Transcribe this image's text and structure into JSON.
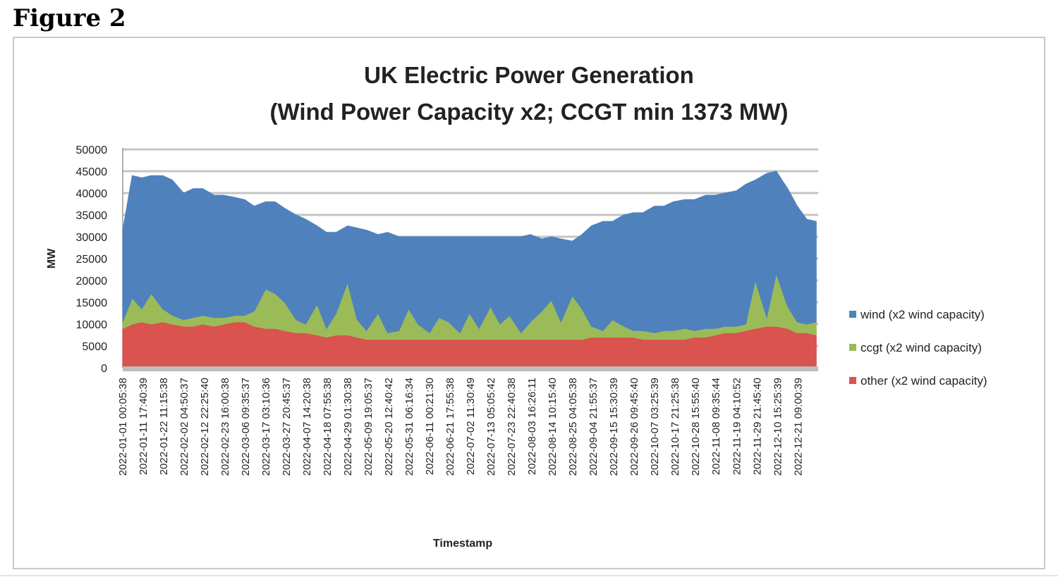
{
  "figure_label": "Figure 2",
  "chart_data": {
    "type": "area",
    "stacked": true,
    "title": [
      "UK Electric Power Generation",
      "(Wind Power Capacity x2; CCGT min 1373 MW)"
    ],
    "ylabel": "MW",
    "xlabel": "Timestamp",
    "ylim": [
      0,
      50000
    ],
    "yticks": [
      0,
      5000,
      10000,
      15000,
      20000,
      25000,
      30000,
      35000,
      40000,
      45000,
      50000
    ],
    "grid": true,
    "legend_position": "right",
    "x_tick_labels": [
      "2022-01-01 00:05:38",
      "2022-01-11 17:40:39",
      "2022-01-22 11:15:38",
      "2022-02-02 04:50:37",
      "2022-02-12 22:25:40",
      "2022-02-23 16:00:38",
      "2022-03-06 09:35:37",
      "2022-03-17 03:10:36",
      "2022-03-27 20:45:37",
      "2022-04-07 14:20:38",
      "2022-04-18 07:55:38",
      "2022-04-29 01:30:38",
      "2022-05-09 19:05:37",
      "2022-05-20 12:40:42",
      "2022-05-31 06:16:34",
      "2022-06-11 00:21:30",
      "2022-06-21 17:55:38",
      "2022-07-02 11:30:49",
      "2022-07-13 05:05:42",
      "2022-07-23 22:40:38",
      "2022-08-03 16:26:11",
      "2022-08-14 10:15:40",
      "2022-08-25 04:05:38",
      "2022-09-04 21:55:37",
      "2022-09-15 15:30:39",
      "2022-09-26 09:45:40",
      "2022-10-07 03:25:39",
      "2022-10-17 21:25:38",
      "2022-10-28 15:55:40",
      "2022-11-08 09:35:44",
      "2022-11-19 04:10:52",
      "2022-11-29 21:45:40",
      "2022-12-10 15:25:39",
      "2022-12-21 09:00:39"
    ],
    "x_tick_values": [
      "2022-01-01 00:05:38",
      "2022-01-11 17:40:39",
      "2022-01-22 11:15:38",
      "2022-02-02 04:50:37",
      "2022-02-12 22:25:40",
      "2022-02-23 16:00:38",
      "2022-03-06 09:35:37",
      "2022-03-17 03:10:36",
      "2022-03-27 20:45:37",
      "2022-04-07 14:20:38",
      "2022-04-18 07:55:38",
      "2022-04-29 01:30:38",
      "2022-05-09 19:05:37",
      "2022-05-20 12:40:42",
      "2022-05-31 06:16:34",
      "2022-06-11 00:21:30",
      "2022-06-21 17:55:38",
      "2022-07-02 11:30:49",
      "2022-07-13 05:05:42",
      "2022-07-23 22:40:38",
      "2022-08-03 16:26:11",
      "2022-08-14 10:15:40",
      "2022-08-25 04:05:38",
      "2022-09-04 21:55:37",
      "2022-09-15 15:30:39",
      "2022-09-26 09:45:40",
      "2022-10-07 03:25:39",
      "2022-10-17 21:25:38",
      "2022-10-28 15:55:40",
      "2022-11-08 09:35:44",
      "2022-11-19 04:10:52",
      "2022-11-29 21:45:40",
      "2022-12-10 15:25:39",
      "2022-12-21 09:00:39"
    ],
    "x": [
      "2022-01-01",
      "2022-01-06",
      "2022-01-11",
      "2022-01-16",
      "2022-01-22",
      "2022-01-27",
      "2022-02-02",
      "2022-02-07",
      "2022-02-12",
      "2022-02-18",
      "2022-02-23",
      "2022-03-01",
      "2022-03-06",
      "2022-03-11",
      "2022-03-17",
      "2022-03-22",
      "2022-03-27",
      "2022-04-02",
      "2022-04-07",
      "2022-04-13",
      "2022-04-18",
      "2022-04-23",
      "2022-04-29",
      "2022-05-04",
      "2022-05-09",
      "2022-05-15",
      "2022-05-20",
      "2022-05-26",
      "2022-05-31",
      "2022-06-05",
      "2022-06-11",
      "2022-06-16",
      "2022-06-21",
      "2022-06-27",
      "2022-07-02",
      "2022-07-07",
      "2022-07-13",
      "2022-07-18",
      "2022-07-23",
      "2022-07-29",
      "2022-08-03",
      "2022-08-09",
      "2022-08-14",
      "2022-08-19",
      "2022-08-25",
      "2022-08-30",
      "2022-09-04",
      "2022-09-10",
      "2022-09-15",
      "2022-09-21",
      "2022-09-26",
      "2022-10-01",
      "2022-10-07",
      "2022-10-12",
      "2022-10-17",
      "2022-10-23",
      "2022-10-28",
      "2022-11-03",
      "2022-11-08",
      "2022-11-13",
      "2022-11-19",
      "2022-11-24",
      "2022-11-29",
      "2022-12-05",
      "2022-12-10",
      "2022-12-16",
      "2022-12-21",
      "2022-12-26",
      "2022-12-31"
    ],
    "series": [
      {
        "name": "other (x2 wind capacity)",
        "color": "#d9534f",
        "values": [
          9000,
          10000,
          10500,
          10000,
          10500,
          10000,
          9500,
          9500,
          10000,
          9500,
          10000,
          10500,
          10500,
          9500,
          9000,
          9000,
          8500,
          8000,
          8000,
          7500,
          7000,
          7500,
          7500,
          7000,
          6500,
          6500,
          6500,
          6500,
          6500,
          6500,
          6500,
          6500,
          6500,
          6500,
          6500,
          6500,
          6500,
          6500,
          6500,
          6500,
          6500,
          6500,
          6500,
          6500,
          6500,
          6500,
          7000,
          7000,
          7000,
          7000,
          7000,
          6500,
          6500,
          6500,
          6500,
          6500,
          7000,
          7000,
          7500,
          8000,
          8000,
          8500,
          9000,
          9500,
          9500,
          9000,
          8000,
          8000,
          7500
        ]
      },
      {
        "name": "ccgt (x2 wind capacity)",
        "color": "#9bbb59",
        "values": [
          1500,
          6000,
          3000,
          7000,
          3000,
          2000,
          1500,
          2000,
          2000,
          2000,
          1500,
          1500,
          1500,
          3500,
          9000,
          8000,
          6500,
          3000,
          2000,
          7000,
          2000,
          5000,
          12000,
          4000,
          2000,
          6000,
          1500,
          2000,
          7000,
          3500,
          1500,
          5000,
          4000,
          1500,
          6000,
          2500,
          7500,
          3500,
          5500,
          1500,
          4000,
          6500,
          9000,
          4000,
          10000,
          7000,
          2500,
          1500,
          4000,
          2500,
          1500,
          2000,
          1500,
          2000,
          2000,
          2500,
          1500,
          2000,
          1500,
          1500,
          1500,
          1500,
          11000,
          2000,
          12000,
          5000,
          2500,
          2000,
          3000
        ]
      },
      {
        "name": "wind (x2 wind capacity)",
        "color": "#4f81bd",
        "values": [
          21000,
          28000,
          30000,
          27000,
          30500,
          31000,
          29000,
          29500,
          29000,
          28000,
          28000,
          27000,
          26500,
          24000,
          20000,
          21000,
          21500,
          24000,
          24000,
          18000,
          22000,
          18500,
          13000,
          21000,
          23000,
          18000,
          23000,
          21500,
          16500,
          20000,
          22000,
          18500,
          19500,
          22000,
          17500,
          21000,
          16000,
          20000,
          18000,
          22000,
          20000,
          16500,
          14500,
          19000,
          12500,
          17000,
          23000,
          25000,
          22500,
          25500,
          27000,
          27000,
          29000,
          28500,
          29500,
          29500,
          30000,
          30500,
          30500,
          30500,
          31000,
          32000,
          23000,
          33000,
          23500,
          27000,
          26500,
          24000,
          23000
        ]
      }
    ]
  }
}
